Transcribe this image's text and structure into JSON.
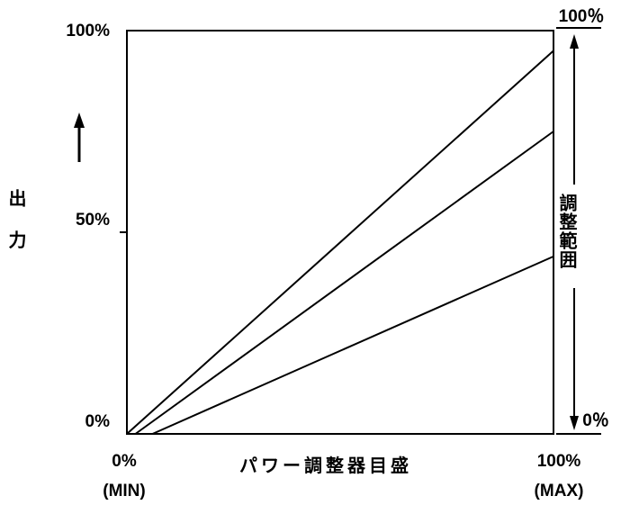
{
  "chart_data": {
    "type": "line",
    "xlabel": "パワー調整器目盛",
    "ylabel": "出力",
    "x_ticks": [
      {
        "value": 0,
        "label": "0%",
        "sublabel": "(MIN)"
      },
      {
        "value": 100,
        "label": "100%",
        "sublabel": "(MAX)"
      }
    ],
    "y_ticks": [
      {
        "value": 0,
        "label": "0%"
      },
      {
        "value": 50,
        "label": "50%"
      },
      {
        "value": 100,
        "label": "100%"
      }
    ],
    "xlim": [
      0,
      100
    ],
    "ylim": [
      0,
      100
    ],
    "grid": false,
    "series": [
      {
        "x": [
          0,
          100
        ],
        "y": [
          0,
          95
        ]
      },
      {
        "x": [
          2,
          100
        ],
        "y": [
          0,
          75
        ]
      },
      {
        "x": [
          6,
          100
        ],
        "y": [
          0,
          44
        ]
      }
    ],
    "right_axis": {
      "label": "調整範囲",
      "top_label": "100％",
      "bottom_label": "0％"
    },
    "y_arrow": true
  }
}
